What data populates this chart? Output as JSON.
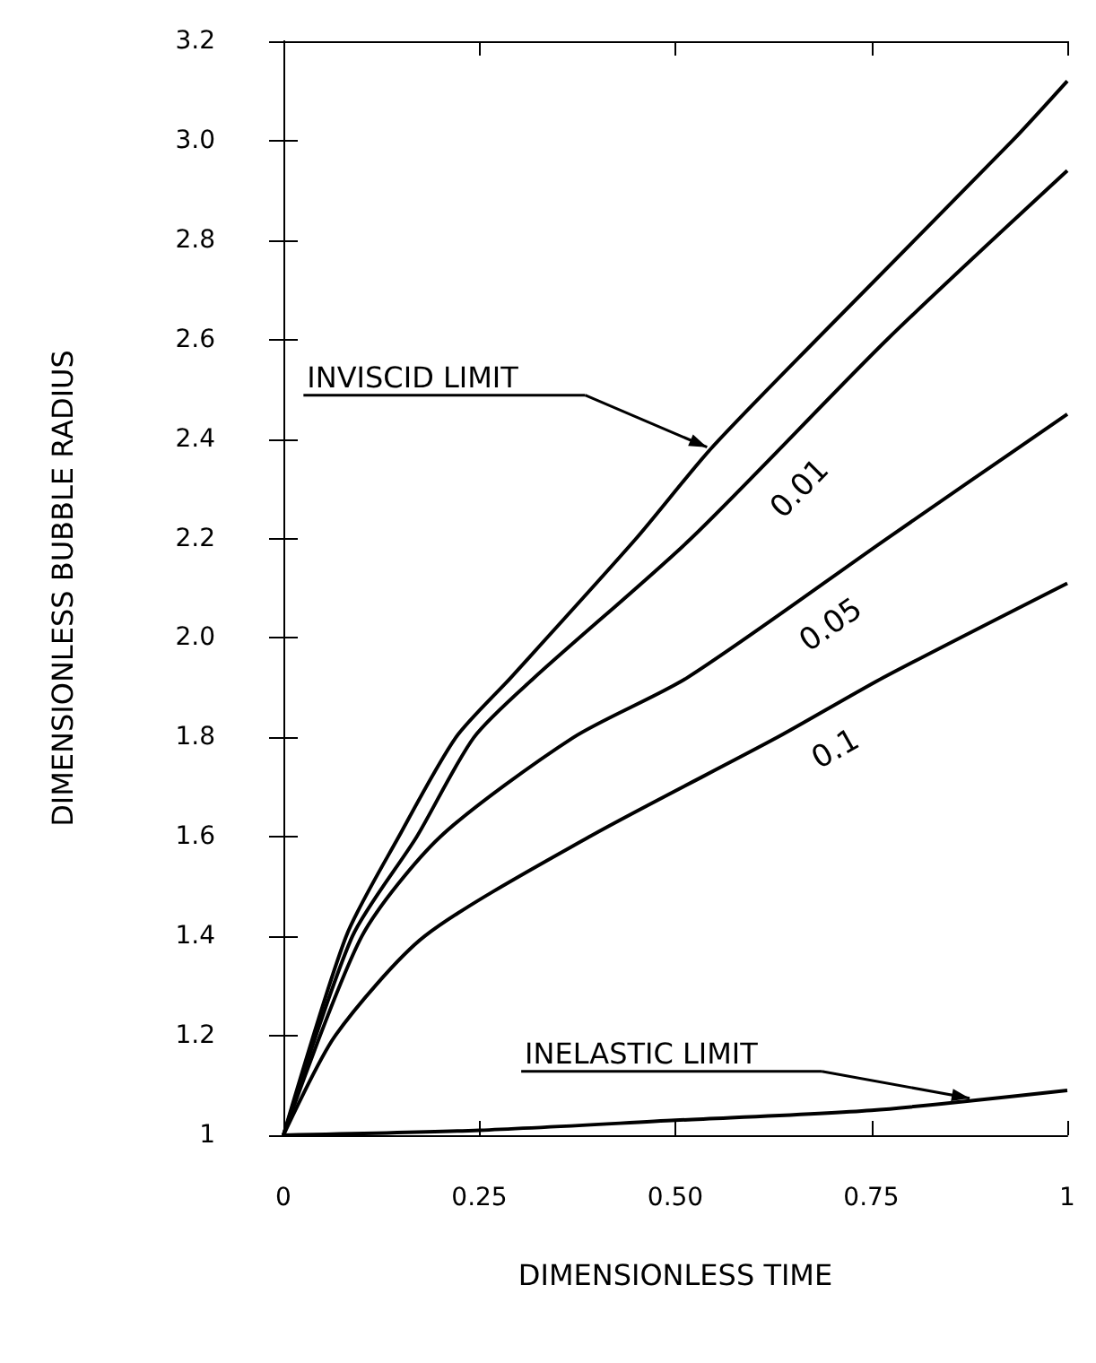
{
  "chart_data": {
    "type": "line",
    "xlabel": "DIMENSIONLESS TIME",
    "ylabel": "DIMENSIONLESS BUBBLE RADIUS",
    "series": [
      {
        "color": "#000000",
        "x": [
          0,
          0.08,
          0.147,
          0.22,
          0.29,
          0.45,
          0.545,
          0.68,
          0.93,
          1
        ],
        "values": [
          1,
          1.4,
          1.6,
          1.8,
          1.92,
          2.2,
          2.38,
          2.6,
          3.0,
          3.12
        ]
      },
      {
        "name": "0.01",
        "color": "#000000",
        "x": [
          0,
          0.088,
          0.17,
          0.243,
          0.32,
          0.52,
          0.77,
          1
        ],
        "values": [
          1,
          1.4,
          1.6,
          1.8,
          1.92,
          2.2,
          2.6,
          2.94
        ]
      },
      {
        "name": "0.05",
        "color": "#000000",
        "x": [
          0,
          0.1,
          0.2,
          0.37,
          0.515,
          0.77,
          1
        ],
        "values": [
          1,
          1.4,
          1.6,
          1.8,
          1.92,
          2.2,
          2.45
        ]
      },
      {
        "name": "0.1",
        "color": "#000000",
        "x": [
          0,
          0.066,
          0.18,
          0.39,
          0.63,
          0.765,
          1
        ],
        "values": [
          1,
          1.2,
          1.4,
          1.6,
          1.8,
          1.92,
          2.11
        ]
      },
      {
        "color": "#000000",
        "x": [
          0,
          0.25,
          0.5,
          0.75,
          1
        ],
        "values": [
          1,
          1.01,
          1.03,
          1.05,
          1.09
        ]
      }
    ],
    "xlim": [
      0,
      1
    ],
    "xticks": [
      0,
      0.25,
      {
        "value": 0.5,
        "label": "0.50"
      },
      0.75,
      1
    ],
    "ylim": [
      1,
      3.2
    ],
    "yticks": [
      1,
      1.2,
      1.4,
      1.6,
      1.8,
      {
        "value": 2,
        "label": "2.0"
      },
      2.2,
      2.4,
      2.6,
      2.8,
      {
        "value": 3,
        "label": "3.0"
      },
      3.2
    ],
    "annotations": [
      "INVISCID LIMIT",
      "INELASTIC LIMIT"
    ],
    "grid": false,
    "legend": false,
    "marker": "none",
    "line_style": "solid"
  }
}
